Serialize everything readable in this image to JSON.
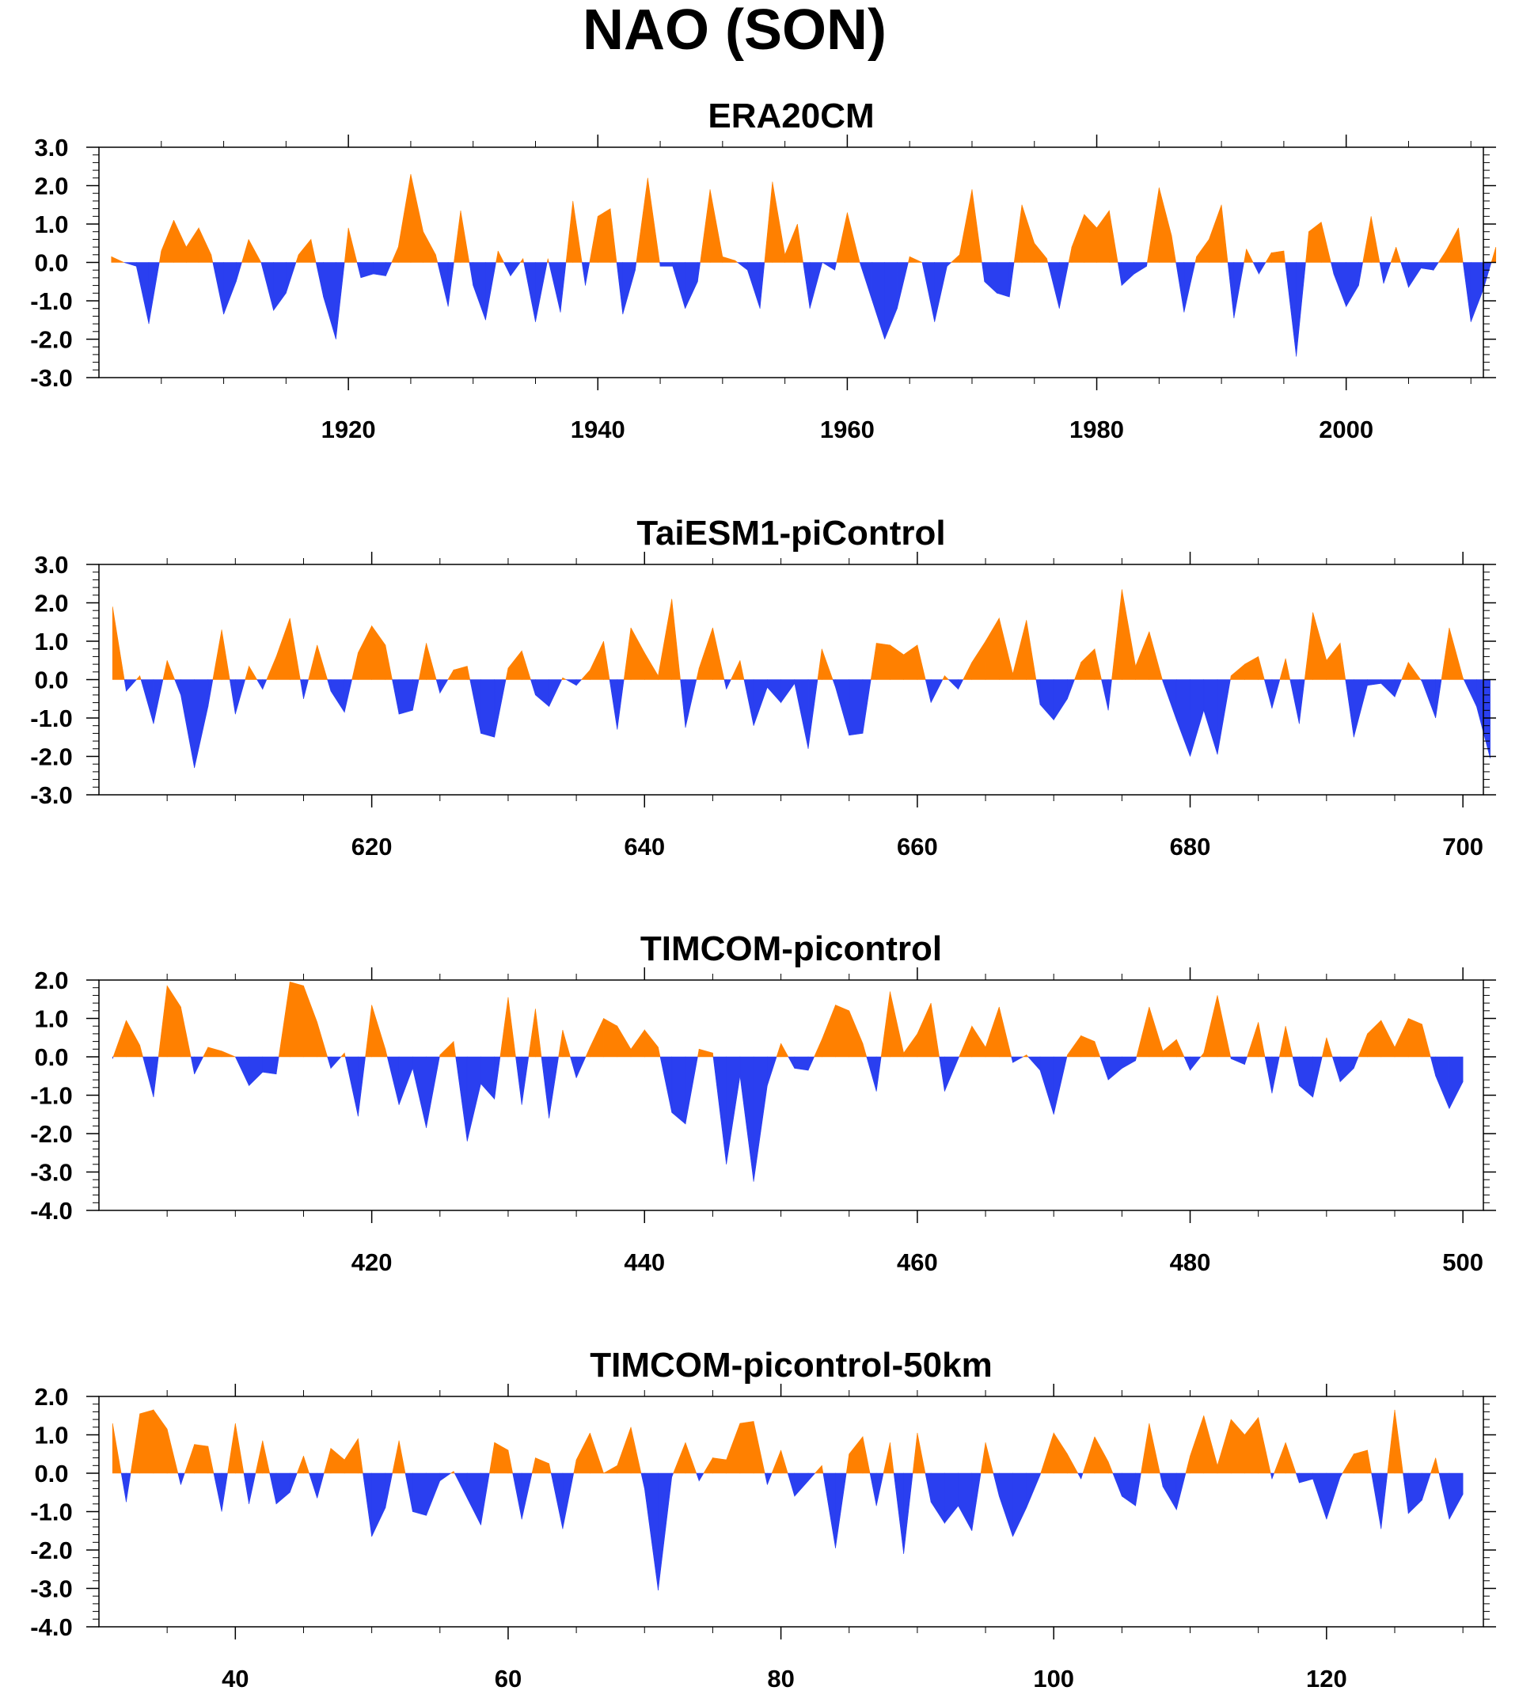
{
  "title": "NAO (SON)",
  "colors": {
    "positive": "#ff8000",
    "negative": "#2a3ff0",
    "frame": "#000000"
  },
  "chart_data": [
    {
      "type": "area",
      "title": "ERA20CM",
      "x_start": 1901,
      "ylim": [
        -3.0,
        3.0
      ],
      "y_ticks": [
        3.0,
        2.0,
        1.0,
        0.0,
        -1.0,
        -2.0,
        -3.0
      ],
      "y_tick_labels": [
        "3.0",
        "2.0",
        "1.0",
        "0.0",
        "-1.0",
        "-2.0",
        "-3.0"
      ],
      "xlim": [
        1900,
        2011
      ],
      "x_ticks": [
        1920,
        1940,
        1960,
        1980,
        2000
      ],
      "x_tick_labels": [
        "1920",
        "1940",
        "1960",
        "1980",
        "2000"
      ],
      "x_minor_ticks": [
        1905,
        1910,
        1915,
        1925,
        1930,
        1935,
        1945,
        1950,
        1955,
        1965,
        1970,
        1975,
        1985,
        1990,
        1995,
        2005,
        2010
      ],
      "grid": false,
      "values": [
        0.15,
        0.0,
        -0.1,
        -1.6,
        0.3,
        1.1,
        0.4,
        0.9,
        0.2,
        -1.35,
        -0.5,
        0.6,
        0.0,
        -1.25,
        -0.8,
        0.2,
        0.6,
        -0.9,
        -2.0,
        0.9,
        -0.4,
        -0.3,
        -0.35,
        0.4,
        2.3,
        0.8,
        0.2,
        -1.15,
        1.35,
        -0.6,
        -1.5,
        0.3,
        -0.35,
        0.1,
        -1.55,
        0.1,
        -1.3,
        1.6,
        -0.6,
        1.2,
        1.4,
        -1.35,
        -0.2,
        2.2,
        -0.1,
        -0.1,
        -1.2,
        -0.5,
        1.9,
        0.15,
        0.05,
        -0.2,
        -1.2,
        2.1,
        0.2,
        1.0,
        -1.2,
        0.0,
        -0.2,
        1.3,
        0.0,
        -1.0,
        -2.0,
        -1.2,
        0.15,
        0.0,
        -1.55,
        -0.1,
        0.2,
        1.9,
        -0.5,
        -0.8,
        -0.9,
        1.5,
        0.5,
        0.1,
        -1.2,
        0.4,
        1.25,
        0.9,
        1.35,
        -0.6,
        -0.3,
        -0.1,
        1.95,
        0.7,
        -1.3,
        0.15,
        0.6,
        1.5,
        -1.45,
        0.35,
        -0.3,
        0.25,
        0.3,
        -2.45,
        0.8,
        1.05,
        -0.3,
        -1.15,
        -0.6,
        1.2,
        -0.55,
        0.4,
        -0.65,
        -0.15,
        -0.2,
        0.3,
        0.9,
        -1.55,
        -0.7,
        0.4
      ]
    },
    {
      "type": "area",
      "title": "TaiESM1-piControl",
      "x_start": 601,
      "ylim": [
        -3.0,
        3.0
      ],
      "y_ticks": [
        3.0,
        2.0,
        1.0,
        0.0,
        -1.0,
        -2.0,
        -3.0
      ],
      "y_tick_labels": [
        "3.0",
        "2.0",
        "1.0",
        "0.0",
        "-1.0",
        "-2.0",
        "-3.0"
      ],
      "xlim": [
        600,
        701.5
      ],
      "x_ticks": [
        620,
        640,
        660,
        680,
        700
      ],
      "x_tick_labels": [
        "620",
        "640",
        "660",
        "680",
        "700"
      ],
      "x_minor_ticks": [
        605,
        610,
        615,
        625,
        630,
        635,
        645,
        650,
        655,
        665,
        670,
        675,
        685,
        690,
        695
      ],
      "grid": false,
      "values": [
        1.9,
        -0.3,
        0.1,
        -1.15,
        0.5,
        -0.4,
        -2.3,
        -0.7,
        1.3,
        -0.9,
        0.35,
        -0.25,
        0.6,
        1.6,
        -0.5,
        0.9,
        -0.3,
        -0.85,
        0.7,
        1.4,
        0.9,
        -0.9,
        -0.8,
        0.95,
        -0.35,
        0.25,
        0.35,
        -1.4,
        -1.5,
        0.3,
        0.75,
        -0.4,
        -0.7,
        0.05,
        -0.15,
        0.25,
        1.0,
        -1.3,
        1.35,
        0.7,
        0.1,
        2.1,
        -1.25,
        0.3,
        1.35,
        -0.25,
        0.5,
        -1.2,
        -0.2,
        -0.6,
        -0.1,
        -1.8,
        0.8,
        -0.2,
        -1.45,
        -1.4,
        0.95,
        0.9,
        0.65,
        0.9,
        -0.6,
        0.1,
        -0.25,
        0.45,
        1.0,
        1.6,
        0.15,
        1.55,
        -0.65,
        -1.05,
        -0.5,
        0.45,
        0.8,
        -0.8,
        2.35,
        0.35,
        1.25,
        -0.05,
        -1.05,
        -2.0,
        -0.8,
        -1.95,
        0.1,
        0.4,
        0.6,
        -0.75,
        0.55,
        -1.15,
        1.75,
        0.5,
        0.95,
        -1.5,
        -0.15,
        -0.1,
        -0.45,
        0.45,
        -0.05,
        -1.0,
        1.35,
        0.05,
        -0.7,
        -2.05
      ]
    },
    {
      "type": "area",
      "title": "TIMCOM-picontrol",
      "x_start": 401,
      "ylim": [
        -4.0,
        2.0
      ],
      "y_ticks": [
        2.0,
        1.0,
        0.0,
        -1.0,
        -2.0,
        -3.0,
        -4.0
      ],
      "y_tick_labels": [
        "2.0",
        "1.0",
        "0.0",
        "-1.0",
        "-2.0",
        "-3.0",
        "-4.0"
      ],
      "xlim": [
        400,
        501.5
      ],
      "x_ticks": [
        420,
        440,
        460,
        480,
        500
      ],
      "x_tick_labels": [
        "420",
        "440",
        "460",
        "480",
        "500"
      ],
      "x_minor_ticks": [
        405,
        410,
        415,
        425,
        430,
        435,
        445,
        450,
        455,
        465,
        470,
        475,
        485,
        490,
        495
      ],
      "grid": false,
      "values": [
        -0.05,
        0.95,
        0.3,
        -1.05,
        1.85,
        1.3,
        -0.45,
        0.25,
        0.15,
        0.0,
        -0.75,
        -0.4,
        -0.45,
        1.95,
        1.85,
        0.9,
        -0.3,
        0.1,
        -1.55,
        1.35,
        0.2,
        -1.25,
        -0.3,
        -1.85,
        0.05,
        0.4,
        -2.2,
        -0.7,
        -1.1,
        1.55,
        -1.25,
        1.25,
        -1.6,
        0.7,
        -0.55,
        0.25,
        1.0,
        0.8,
        0.2,
        0.7,
        0.25,
        -1.45,
        -1.75,
        0.2,
        0.1,
        -2.8,
        -0.5,
        -3.25,
        -0.75,
        0.35,
        -0.3,
        -0.35,
        0.45,
        1.35,
        1.2,
        0.35,
        -0.9,
        1.7,
        0.1,
        0.6,
        1.4,
        -0.9,
        -0.05,
        0.8,
        0.25,
        1.3,
        -0.15,
        0.05,
        -0.35,
        -1.5,
        0.05,
        0.55,
        0.4,
        -0.6,
        -0.3,
        -0.1,
        1.3,
        0.15,
        0.45,
        -0.35,
        0.1,
        1.6,
        -0.05,
        -0.2,
        0.9,
        -0.95,
        0.8,
        -0.75,
        -1.05,
        0.5,
        -0.65,
        -0.3,
        0.6,
        0.95,
        0.25,
        1.0,
        0.85,
        -0.5,
        -1.35,
        -0.65
      ]
    },
    {
      "type": "area",
      "title": "TIMCOM-picontrol-50km",
      "x_start": 31,
      "ylim": [
        -4.0,
        2.0
      ],
      "y_ticks": [
        2.0,
        1.0,
        0.0,
        -1.0,
        -2.0,
        -3.0,
        -4.0
      ],
      "y_tick_labels": [
        "2.0",
        "1.0",
        "0.0",
        "-1.0",
        "-2.0",
        "-3.0",
        "-4.0"
      ],
      "xlim": [
        30,
        131.5
      ],
      "x_ticks": [
        40,
        60,
        80,
        100,
        120
      ],
      "x_tick_labels": [
        "40",
        "60",
        "80",
        "100",
        "120"
      ],
      "x_minor_ticks": [
        35,
        45,
        50,
        55,
        65,
        70,
        75,
        85,
        90,
        95,
        105,
        110,
        115,
        125,
        130
      ],
      "grid": false,
      "values": [
        1.3,
        -0.75,
        1.55,
        1.65,
        1.15,
        -0.3,
        0.75,
        0.7,
        -1.0,
        1.3,
        -0.8,
        0.85,
        -0.8,
        -0.5,
        0.45,
        -0.65,
        0.65,
        0.35,
        0.9,
        -1.65,
        -0.9,
        0.85,
        -1.0,
        -1.1,
        -0.2,
        0.05,
        -0.65,
        -1.35,
        0.8,
        0.6,
        -1.2,
        0.4,
        0.25,
        -1.45,
        0.35,
        1.05,
        0.0,
        0.2,
        1.2,
        -0.4,
        -3.05,
        -0.1,
        0.8,
        -0.2,
        0.4,
        0.35,
        1.3,
        1.35,
        -0.3,
        0.6,
        -0.6,
        -0.2,
        0.2,
        -1.95,
        0.5,
        0.95,
        -0.85,
        0.8,
        -2.1,
        1.05,
        -0.75,
        -1.3,
        -0.85,
        -1.5,
        0.8,
        -0.6,
        -1.65,
        -0.9,
        -0.05,
        1.05,
        0.5,
        -0.15,
        0.95,
        0.3,
        -0.6,
        -0.85,
        1.3,
        -0.35,
        -0.95,
        0.45,
        1.5,
        0.2,
        1.4,
        1.0,
        1.45,
        -0.15,
        0.8,
        -0.25,
        -0.15,
        -1.2,
        -0.1,
        0.5,
        0.6,
        -1.45,
        1.65,
        -1.05,
        -0.7,
        0.4,
        -1.2,
        -0.55
      ]
    }
  ]
}
